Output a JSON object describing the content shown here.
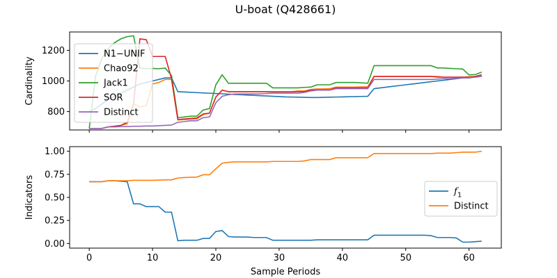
{
  "chart_data": [
    {
      "type": "line",
      "title": "U-boat (Q428661)",
      "xlabel": "",
      "ylabel": "Cardinality",
      "xlim": [
        -3.1,
        65.1
      ],
      "ylim": [
        680,
        1320
      ],
      "xticks": [
        0,
        10,
        20,
        30,
        40,
        50,
        60
      ],
      "yticks": [
        800,
        1000,
        1200
      ],
      "grid": false,
      "legend_loc": "upper-left",
      "x": [
        0,
        1,
        2,
        3,
        4,
        5,
        6,
        7,
        8,
        9,
        10,
        11,
        12,
        13,
        14,
        15,
        16,
        17,
        18,
        19,
        20,
        21,
        22,
        23,
        24,
        25,
        26,
        27,
        28,
        29,
        30,
        31,
        32,
        33,
        34,
        35,
        36,
        37,
        38,
        39,
        40,
        41,
        42,
        43,
        44,
        45,
        46,
        47,
        48,
        49,
        50,
        51,
        52,
        53,
        54,
        55,
        56,
        57,
        58,
        59,
        60,
        61,
        62
      ],
      "series": [
        {
          "name": "N1−UNIF",
          "color": "#1f77b4",
          "values": [
            800,
            820,
            850,
            880,
            900,
            920,
            940,
            960,
            980,
            990,
            1000,
            1010,
            1020,
            1020,
            930,
            928,
            926,
            924,
            922,
            920,
            918,
            916,
            914,
            912,
            910,
            908,
            906,
            904,
            902,
            900,
            898,
            896,
            895,
            894,
            893,
            892,
            892,
            893,
            894,
            895,
            896,
            897,
            898,
            899,
            900,
            950,
            955,
            960,
            965,
            970,
            975,
            980,
            985,
            990,
            995,
            1000,
            1005,
            1010,
            1015,
            1020,
            1020,
            1025,
            1030
          ]
        },
        {
          "name": "Chao92",
          "color": "#ff7f0e",
          "values": [
            690,
            690,
            690,
            700,
            705,
            710,
            720,
            850,
            830,
            840,
            980,
            990,
            1010,
            1010,
            745,
            748,
            750,
            752,
            780,
            790,
            895,
            940,
            930,
            930,
            930,
            930,
            930,
            930,
            930,
            930,
            930,
            930,
            930,
            935,
            935,
            945,
            948,
            948,
            950,
            960,
            960,
            960,
            960,
            962,
            962,
            1030,
            1030,
            1030,
            1030,
            1030,
            1030,
            1030,
            1030,
            1030,
            1030,
            1030,
            1025,
            1025,
            1025,
            1025,
            1028,
            1030,
            1040
          ]
        },
        {
          "name": "Jack1",
          "color": "#2ca02c",
          "values": [
            690,
            1030,
            1150,
            1210,
            1250,
            1275,
            1290,
            1295,
            1085,
            1080,
            1082,
            1080,
            1084,
            1035,
            760,
            765,
            770,
            770,
            810,
            820,
            975,
            1040,
            985,
            985,
            985,
            985,
            985,
            985,
            985,
            955,
            955,
            955,
            955,
            955,
            958,
            960,
            975,
            975,
            975,
            990,
            990,
            990,
            990,
            988,
            985,
            1100,
            1100,
            1100,
            1100,
            1100,
            1100,
            1100,
            1100,
            1100,
            1100,
            1085,
            1085,
            1082,
            1080,
            1078,
            1040,
            1042,
            1058
          ]
        },
        {
          "name": "SOR",
          "color": "#d62728",
          "values": [
            690,
            690,
            690,
            700,
            705,
            710,
            730,
            850,
            1275,
            1270,
            1160,
            1160,
            1160,
            1015,
            748,
            752,
            755,
            758,
            785,
            790,
            895,
            940,
            930,
            930,
            930,
            930,
            930,
            930,
            930,
            928,
            928,
            928,
            928,
            930,
            930,
            940,
            942,
            942,
            942,
            955,
            955,
            955,
            955,
            955,
            955,
            1030,
            1030,
            1030,
            1030,
            1030,
            1030,
            1030,
            1030,
            1030,
            1030,
            1025,
            1025,
            1025,
            1025,
            1025,
            1025,
            1030,
            1040
          ]
        },
        {
          "name": "Distinct",
          "color": "#9467bd",
          "values": [
            690,
            690,
            690,
            700,
            700,
            702,
            702,
            704,
            704,
            706,
            706,
            708,
            710,
            712,
            730,
            735,
            740,
            740,
            760,
            765,
            858,
            900,
            910,
            915,
            915,
            915,
            915,
            915,
            918,
            920,
            920,
            920,
            920,
            920,
            925,
            935,
            940,
            940,
            940,
            950,
            950,
            950,
            950,
            950,
            950,
            1010,
            1010,
            1010,
            1010,
            1010,
            1010,
            1010,
            1010,
            1010,
            1010,
            1012,
            1015,
            1015,
            1018,
            1020,
            1022,
            1025,
            1030
          ]
        }
      ]
    },
    {
      "type": "line",
      "title": "",
      "xlabel": "Sample Periods",
      "ylabel": "Indicators",
      "xlim": [
        -3.1,
        65.1
      ],
      "ylim": [
        -0.05,
        1.05
      ],
      "xticks": [
        0,
        10,
        20,
        30,
        40,
        50,
        60
      ],
      "yticks": [
        0.0,
        0.25,
        0.5,
        0.75,
        1.0
      ],
      "ytick_labels": [
        "0.00",
        "0.25",
        "0.50",
        "0.75",
        "1.00"
      ],
      "grid": false,
      "legend_loc": "center-right",
      "x": [
        0,
        1,
        2,
        3,
        4,
        5,
        6,
        7,
        8,
        9,
        10,
        11,
        12,
        13,
        14,
        15,
        16,
        17,
        18,
        19,
        20,
        21,
        22,
        23,
        24,
        25,
        26,
        27,
        28,
        29,
        30,
        31,
        32,
        33,
        34,
        35,
        36,
        37,
        38,
        39,
        40,
        41,
        42,
        43,
        44,
        45,
        46,
        47,
        48,
        49,
        50,
        51,
        52,
        53,
        54,
        55,
        56,
        57,
        58,
        59,
        60,
        61,
        62
      ],
      "series": [
        {
          "name": "f_1",
          "color": "#1f77b4",
          "values": [
            0.67,
            0.67,
            0.67,
            0.68,
            0.68,
            0.675,
            0.67,
            0.43,
            0.43,
            0.4,
            0.4,
            0.4,
            0.34,
            0.34,
            0.03,
            0.035,
            0.035,
            0.035,
            0.055,
            0.055,
            0.13,
            0.14,
            0.075,
            0.07,
            0.07,
            0.07,
            0.065,
            0.065,
            0.065,
            0.035,
            0.035,
            0.035,
            0.035,
            0.035,
            0.035,
            0.035,
            0.04,
            0.04,
            0.04,
            0.04,
            0.04,
            0.04,
            0.04,
            0.04,
            0.04,
            0.09,
            0.09,
            0.09,
            0.09,
            0.09,
            0.09,
            0.09,
            0.09,
            0.09,
            0.085,
            0.065,
            0.065,
            0.065,
            0.06,
            0.015,
            0.015,
            0.02,
            0.025
          ]
        },
        {
          "name": "Distinct",
          "color": "#ff7f0e",
          "values": [
            0.67,
            0.67,
            0.67,
            0.68,
            0.68,
            0.68,
            0.68,
            0.685,
            0.685,
            0.685,
            0.685,
            0.687,
            0.69,
            0.69,
            0.71,
            0.715,
            0.718,
            0.72,
            0.745,
            0.745,
            0.81,
            0.87,
            0.88,
            0.885,
            0.885,
            0.885,
            0.885,
            0.885,
            0.885,
            0.89,
            0.89,
            0.89,
            0.89,
            0.89,
            0.895,
            0.91,
            0.91,
            0.91,
            0.91,
            0.93,
            0.93,
            0.93,
            0.93,
            0.93,
            0.93,
            0.975,
            0.975,
            0.975,
            0.975,
            0.975,
            0.975,
            0.975,
            0.975,
            0.975,
            0.975,
            0.98,
            0.98,
            0.98,
            0.985,
            0.99,
            0.99,
            0.99,
            1.0
          ]
        }
      ]
    }
  ]
}
